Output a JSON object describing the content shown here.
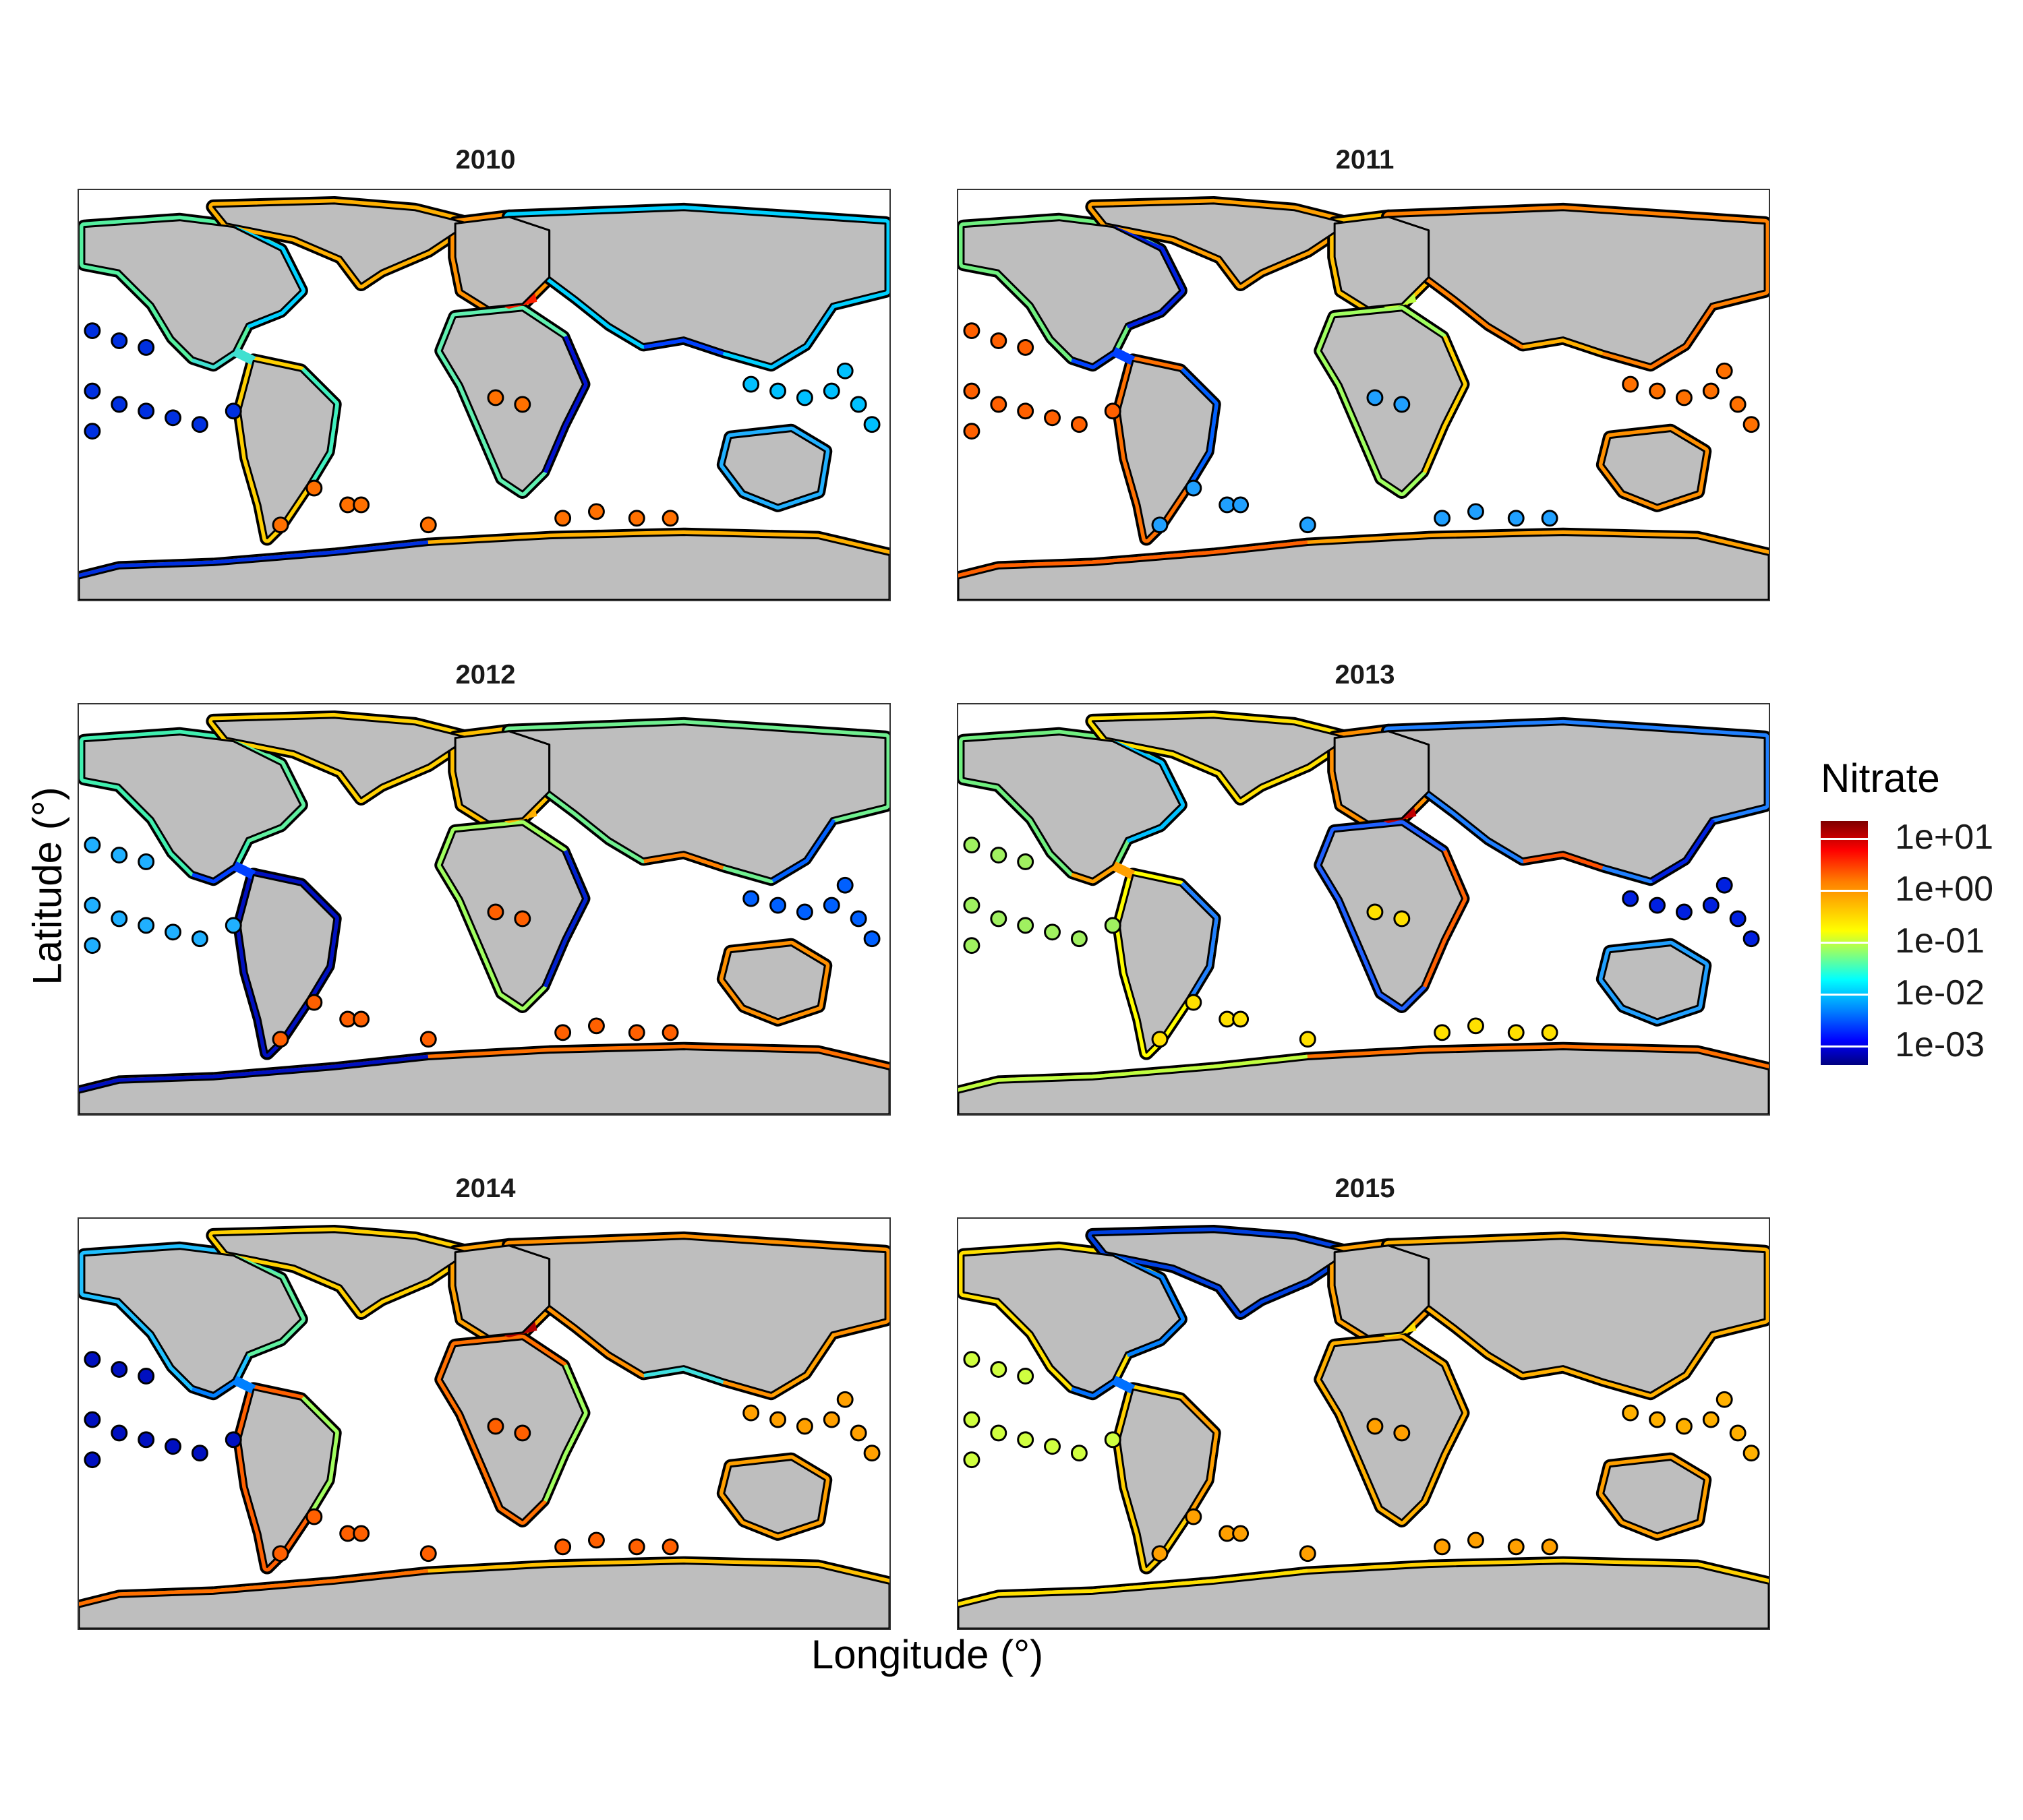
{
  "figure": {
    "xlabel": "Longitude (°)",
    "ylabel": "Latitude (°)"
  },
  "legend": {
    "title": "Nitrate",
    "ticks": [
      "1e+01",
      "1e+00",
      "1e-01",
      "1e-02",
      "1e-03"
    ],
    "scale": "log10",
    "colors": [
      "#00007f",
      "#0000ff",
      "#007fff",
      "#00ffff",
      "#7fff7f",
      "#ffff00",
      "#ff7f00",
      "#ff0000",
      "#7f0000"
    ]
  },
  "map_style": {
    "land_color": "#bebebe",
    "ocean_color": "#ffffff",
    "border_color": "#000000"
  },
  "panels": [
    {
      "year": "2010",
      "regions": {
        "arctic": "#ffb000",
        "north_pacific": "#55f0a0",
        "us_east": "#00d0ff",
        "caribbean": "#40e0d0",
        "sa_west": "#ffd000",
        "sa_east": "#40f0c0",
        "europe": "#ff9000",
        "med": "#ff2000",
        "west_africa": "#60f0b0",
        "east_africa": "#0010d0",
        "indian": "#0040ff",
        "asia_east": "#00d0ff",
        "indonesia": "#00c0ff",
        "australia": "#20b0ff",
        "pacific_islands": "#0030e0",
        "antarctica_w": "#0030e0",
        "antarctica_e": "#ffb000",
        "south_atlantic_isl": "#ff7000"
      }
    },
    {
      "year": "2011",
      "regions": {
        "arctic": "#ffa000",
        "north_pacific": "#70f080",
        "us_east": "#0020e0",
        "caribbean": "#0040ff",
        "sa_west": "#ff7000",
        "sa_east": "#0060ff",
        "europe": "#ffc000",
        "med": "#c0ff40",
        "west_africa": "#a0ff60",
        "east_africa": "#ffd000",
        "indian": "#ffb000",
        "asia_east": "#ff8000",
        "indonesia": "#ff7000",
        "australia": "#ff9000",
        "pacific_islands": "#ff6000",
        "antarctica_w": "#ff6000",
        "antarctica_e": "#ffa000",
        "south_atlantic_isl": "#20a0ff"
      }
    },
    {
      "year": "2012",
      "regions": {
        "arctic": "#ffd000",
        "north_pacific": "#40f0b0",
        "us_east": "#60f0a0",
        "caribbean": "#0040ff",
        "sa_west": "#0010c0",
        "sa_east": "#0010c0",
        "europe": "#ffc000",
        "med": "#ffb000",
        "west_africa": "#a0ff60",
        "east_africa": "#0020d0",
        "indian": "#ff8000",
        "asia_east": "#70f090",
        "indonesia": "#0060ff",
        "australia": "#ff9000",
        "pacific_islands": "#20b0ff",
        "antarctica_w": "#0010c0",
        "antarctica_e": "#ff7000",
        "south_atlantic_isl": "#ff6000"
      }
    },
    {
      "year": "2013",
      "regions": {
        "arctic": "#ffe000",
        "north_pacific": "#70f080",
        "us_east": "#00c0ff",
        "caribbean": "#ffa000",
        "sa_west": "#ffff00",
        "sa_east": "#2080ff",
        "europe": "#ff9000",
        "med": "#c00000",
        "west_africa": "#2060ff",
        "east_africa": "#ff6000",
        "indian": "#ff5000",
        "asia_east": "#2080ff",
        "indonesia": "#0020e0",
        "australia": "#20a0ff",
        "pacific_islands": "#a0f060",
        "antarctica_w": "#c0ff40",
        "antarctica_e": "#ff7000",
        "south_atlantic_isl": "#ffe000"
      }
    },
    {
      "year": "2014",
      "regions": {
        "arctic": "#ffd000",
        "north_pacific": "#20c0ff",
        "us_east": "#60f0a0",
        "caribbean": "#0080ff",
        "sa_west": "#ff6000",
        "sa_east": "#a0ff60",
        "europe": "#ffa000",
        "med": "#b00000",
        "west_africa": "#ff7000",
        "east_africa": "#a0ff60",
        "indian": "#40e0e0",
        "asia_east": "#ff9000",
        "indonesia": "#ffa000",
        "australia": "#ffa000",
        "pacific_islands": "#0010c0",
        "antarctica_w": "#ff7000",
        "antarctica_e": "#ffc000",
        "south_atlantic_isl": "#ff6000"
      }
    },
    {
      "year": "2015",
      "regions": {
        "arctic": "#0040e0",
        "north_pacific": "#ffe000",
        "us_east": "#0080ff",
        "caribbean": "#0070ff",
        "sa_west": "#ffd000",
        "sa_east": "#ffa000",
        "europe": "#ffa000",
        "med": "#ffe000",
        "west_africa": "#ffb000",
        "east_africa": "#ffb000",
        "indian": "#ffb000",
        "asia_east": "#ffb000",
        "indonesia": "#ffb000",
        "australia": "#ffa000",
        "pacific_islands": "#d0ff40",
        "antarctica_w": "#ffe000",
        "antarctica_e": "#ffd000",
        "south_atlantic_isl": "#ffa000"
      }
    }
  ]
}
